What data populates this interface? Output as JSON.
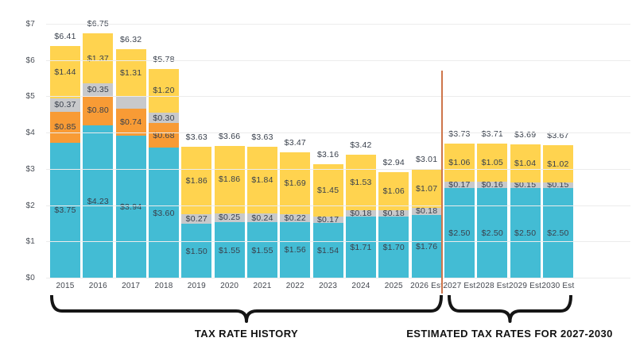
{
  "chart_data": {
    "type": "bar",
    "stacked": true,
    "grid": "horizontal",
    "legend": "none",
    "ylim": [
      0,
      7
    ],
    "ytick_labels": [
      "$0",
      "$1",
      "$2",
      "$3",
      "$4",
      "$5",
      "$6",
      "$7"
    ],
    "segment_colors": {
      "teal": "#43bcd4",
      "orange": "#f89b35",
      "gray": "#c8c9cb",
      "yellow": "#ffd34f"
    },
    "bars": [
      {
        "category": "2015",
        "total": 6.41,
        "total_label": "$6.41",
        "segments": [
          {
            "color": "teal",
            "value": 3.75,
            "label": "$3.75"
          },
          {
            "color": "orange",
            "value": 0.85,
            "label": "$0.85"
          },
          {
            "color": "gray",
            "value": 0.37,
            "label": "$0.37"
          },
          {
            "color": "yellow",
            "value": 1.44,
            "label": "$1.44"
          }
        ]
      },
      {
        "category": "2016",
        "total": 6.75,
        "total_label": "$6.75",
        "segments": [
          {
            "color": "teal",
            "value": 4.23,
            "label": "$4.23"
          },
          {
            "color": "orange",
            "value": 0.8,
            "label": "$0.80"
          },
          {
            "color": "gray",
            "value": 0.35,
            "label": "$0.35"
          },
          {
            "color": "yellow",
            "value": 1.37,
            "label": "$1.37"
          }
        ]
      },
      {
        "category": "2017",
        "total": 6.32,
        "total_label": "$6.32",
        "segments": [
          {
            "color": "teal",
            "value": 3.94,
            "label": "$3.94"
          },
          {
            "color": "orange",
            "value": 0.74,
            "label": "$0.74"
          },
          {
            "color": "gray",
            "value": 0.33,
            "label": ""
          },
          {
            "color": "yellow",
            "value": 1.31,
            "label": "$1.31"
          }
        ]
      },
      {
        "category": "2018",
        "total": 5.78,
        "total_label": "$5.78",
        "segments": [
          {
            "color": "teal",
            "value": 3.6,
            "label": "$3.60"
          },
          {
            "color": "orange",
            "value": 0.68,
            "label": "$0.68"
          },
          {
            "color": "gray",
            "value": 0.3,
            "label": "$0.30"
          },
          {
            "color": "yellow",
            "value": 1.2,
            "label": "$1.20"
          }
        ]
      },
      {
        "category": "2019",
        "total": 3.63,
        "total_label": "$3.63",
        "segments": [
          {
            "color": "teal",
            "value": 1.5,
            "label": "$1.50"
          },
          {
            "color": "gray",
            "value": 0.27,
            "label": "$0.27"
          },
          {
            "color": "yellow",
            "value": 1.86,
            "label": "$1.86"
          }
        ]
      },
      {
        "category": "2020",
        "total": 3.66,
        "total_label": "$3.66",
        "segments": [
          {
            "color": "teal",
            "value": 1.55,
            "label": "$1.55"
          },
          {
            "color": "gray",
            "value": 0.25,
            "label": "$0.25"
          },
          {
            "color": "yellow",
            "value": 1.86,
            "label": "$1.86"
          }
        ]
      },
      {
        "category": "2021",
        "total": 3.63,
        "total_label": "$3.63",
        "segments": [
          {
            "color": "teal",
            "value": 1.55,
            "label": "$1.55"
          },
          {
            "color": "gray",
            "value": 0.24,
            "label": "$0.24"
          },
          {
            "color": "yellow",
            "value": 1.84,
            "label": "$1.84"
          }
        ]
      },
      {
        "category": "2022",
        "total": 3.47,
        "total_label": "$3.47",
        "segments": [
          {
            "color": "teal",
            "value": 1.56,
            "label": "$1.56"
          },
          {
            "color": "gray",
            "value": 0.22,
            "label": "$0.22"
          },
          {
            "color": "yellow",
            "value": 1.69,
            "label": "$1.69"
          }
        ]
      },
      {
        "category": "2023",
        "total": 3.16,
        "total_label": "$3.16",
        "segments": [
          {
            "color": "teal",
            "value": 1.54,
            "label": "$1.54"
          },
          {
            "color": "gray",
            "value": 0.17,
            "label": "$0.17"
          },
          {
            "color": "yellow",
            "value": 1.45,
            "label": "$1.45"
          }
        ]
      },
      {
        "category": "2024",
        "total": 3.42,
        "total_label": "$3.42",
        "segments": [
          {
            "color": "teal",
            "value": 1.71,
            "label": "$1.71"
          },
          {
            "color": "gray",
            "value": 0.18,
            "label": "$0.18"
          },
          {
            "color": "yellow",
            "value": 1.53,
            "label": "$1.53"
          }
        ]
      },
      {
        "category": "2025",
        "total": 2.94,
        "total_label": "$2.94",
        "segments": [
          {
            "color": "teal",
            "value": 1.7,
            "label": "$1.70"
          },
          {
            "color": "gray",
            "value": 0.18,
            "label": "$0.18"
          },
          {
            "color": "yellow",
            "value": 1.06,
            "label": "$1.06"
          }
        ]
      },
      {
        "category": "2026 Est",
        "total": 3.01,
        "total_label": "$3.01",
        "segments": [
          {
            "color": "teal",
            "value": 1.76,
            "label": "$1.76"
          },
          {
            "color": "gray",
            "value": 0.18,
            "label": "$0.18"
          },
          {
            "color": "yellow",
            "value": 1.07,
            "label": "$1.07"
          }
        ]
      },
      {
        "category": "2027 Est",
        "total": 3.73,
        "total_label": "$3.73",
        "segments": [
          {
            "color": "teal",
            "value": 2.5,
            "label": "$2.50"
          },
          {
            "color": "gray",
            "value": 0.17,
            "label": "$0.17"
          },
          {
            "color": "yellow",
            "value": 1.06,
            "label": "$1.06"
          }
        ]
      },
      {
        "category": "2028 Est",
        "total": 3.71,
        "total_label": "$3.71",
        "segments": [
          {
            "color": "teal",
            "value": 2.5,
            "label": "$2.50"
          },
          {
            "color": "gray",
            "value": 0.16,
            "label": "$0.16"
          },
          {
            "color": "yellow",
            "value": 1.05,
            "label": "$1.05"
          }
        ]
      },
      {
        "category": "2029 Est",
        "total": 3.69,
        "total_label": "$3.69",
        "segments": [
          {
            "color": "teal",
            "value": 2.5,
            "label": "$2.50"
          },
          {
            "color": "gray",
            "value": 0.15,
            "label": "$0.15"
          },
          {
            "color": "yellow",
            "value": 1.04,
            "label": "$1.04"
          }
        ]
      },
      {
        "category": "2030 Est",
        "total": 3.67,
        "total_label": "$3.67",
        "segments": [
          {
            "color": "teal",
            "value": 2.5,
            "label": "$2.50"
          },
          {
            "color": "gray",
            "value": 0.15,
            "label": "$0.15"
          },
          {
            "color": "yellow",
            "value": 1.02,
            "label": "$1.02"
          }
        ]
      }
    ],
    "separator": {
      "after_category": "2026 Est",
      "color": "#ce764b"
    },
    "annotations": [
      {
        "label": "TAX RATE HISTORY",
        "span": [
          "2015",
          "2026 Est"
        ]
      },
      {
        "label": "ESTIMATED TAX RATES FOR 2027-2030",
        "span": [
          "2027 Est",
          "2030 Est"
        ]
      }
    ]
  }
}
